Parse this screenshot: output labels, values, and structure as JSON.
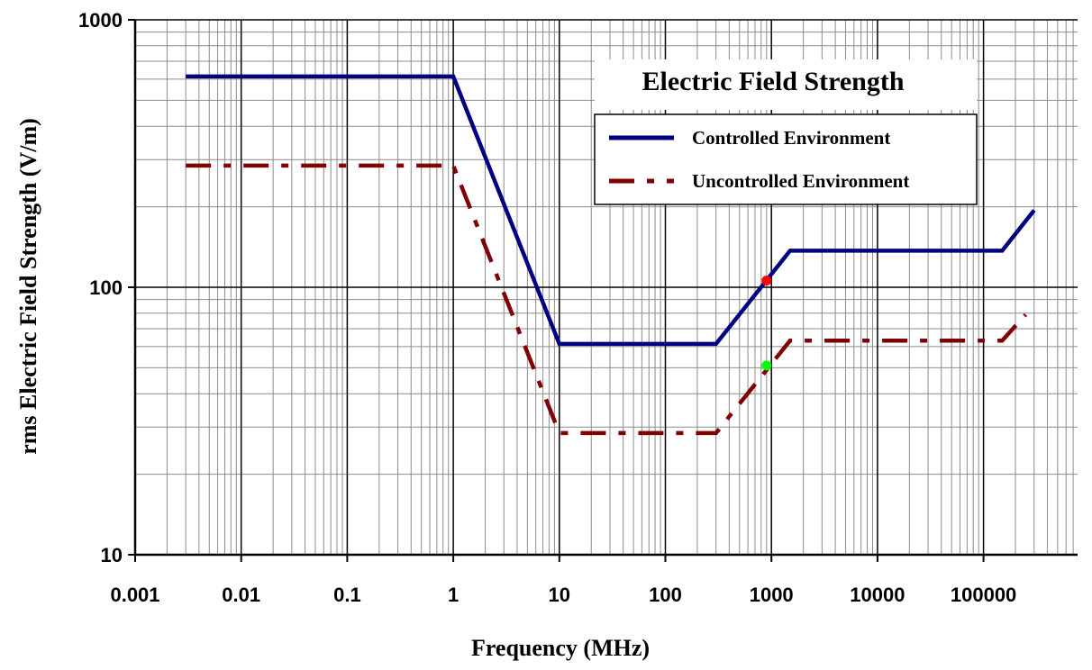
{
  "chart_data": {
    "type": "line",
    "title": "",
    "xlabel": "Frequency (MHz)",
    "ylabel": "rms Electric Field Strength (V/m)",
    "x_scale": "log",
    "y_scale": "log",
    "xlim": [
      0.001,
      1000000
    ],
    "ylim": [
      10,
      1000
    ],
    "grid": true,
    "x_ticks": [
      "0.001",
      "0.01",
      "0.1",
      "1",
      "10",
      "100",
      "1000",
      "10000",
      "100000"
    ],
    "y_ticks": [
      "10",
      "100",
      "1000"
    ],
    "legend": {
      "title": "Electric Field Strength",
      "position": "top-right"
    },
    "series": [
      {
        "name": "Controlled Environment",
        "color": "#000080",
        "style": "solid",
        "x": [
          0.003,
          1,
          10,
          300,
          1500,
          150000,
          300000
        ],
        "y": [
          614,
          614,
          61.4,
          61.4,
          137,
          137,
          194
        ]
      },
      {
        "name": "Uncontrolled Environment",
        "color": "#800000",
        "style": "dashed",
        "x": [
          0.003,
          1,
          10,
          300,
          1500,
          150000,
          250000
        ],
        "y": [
          285,
          285,
          28.5,
          28.5,
          63.2,
          63.2,
          79
        ]
      }
    ],
    "markers": [
      {
        "x": 900,
        "y": 106,
        "color": "#ff0000"
      },
      {
        "x": 900,
        "y": 51,
        "color": "#00ff00"
      }
    ]
  }
}
